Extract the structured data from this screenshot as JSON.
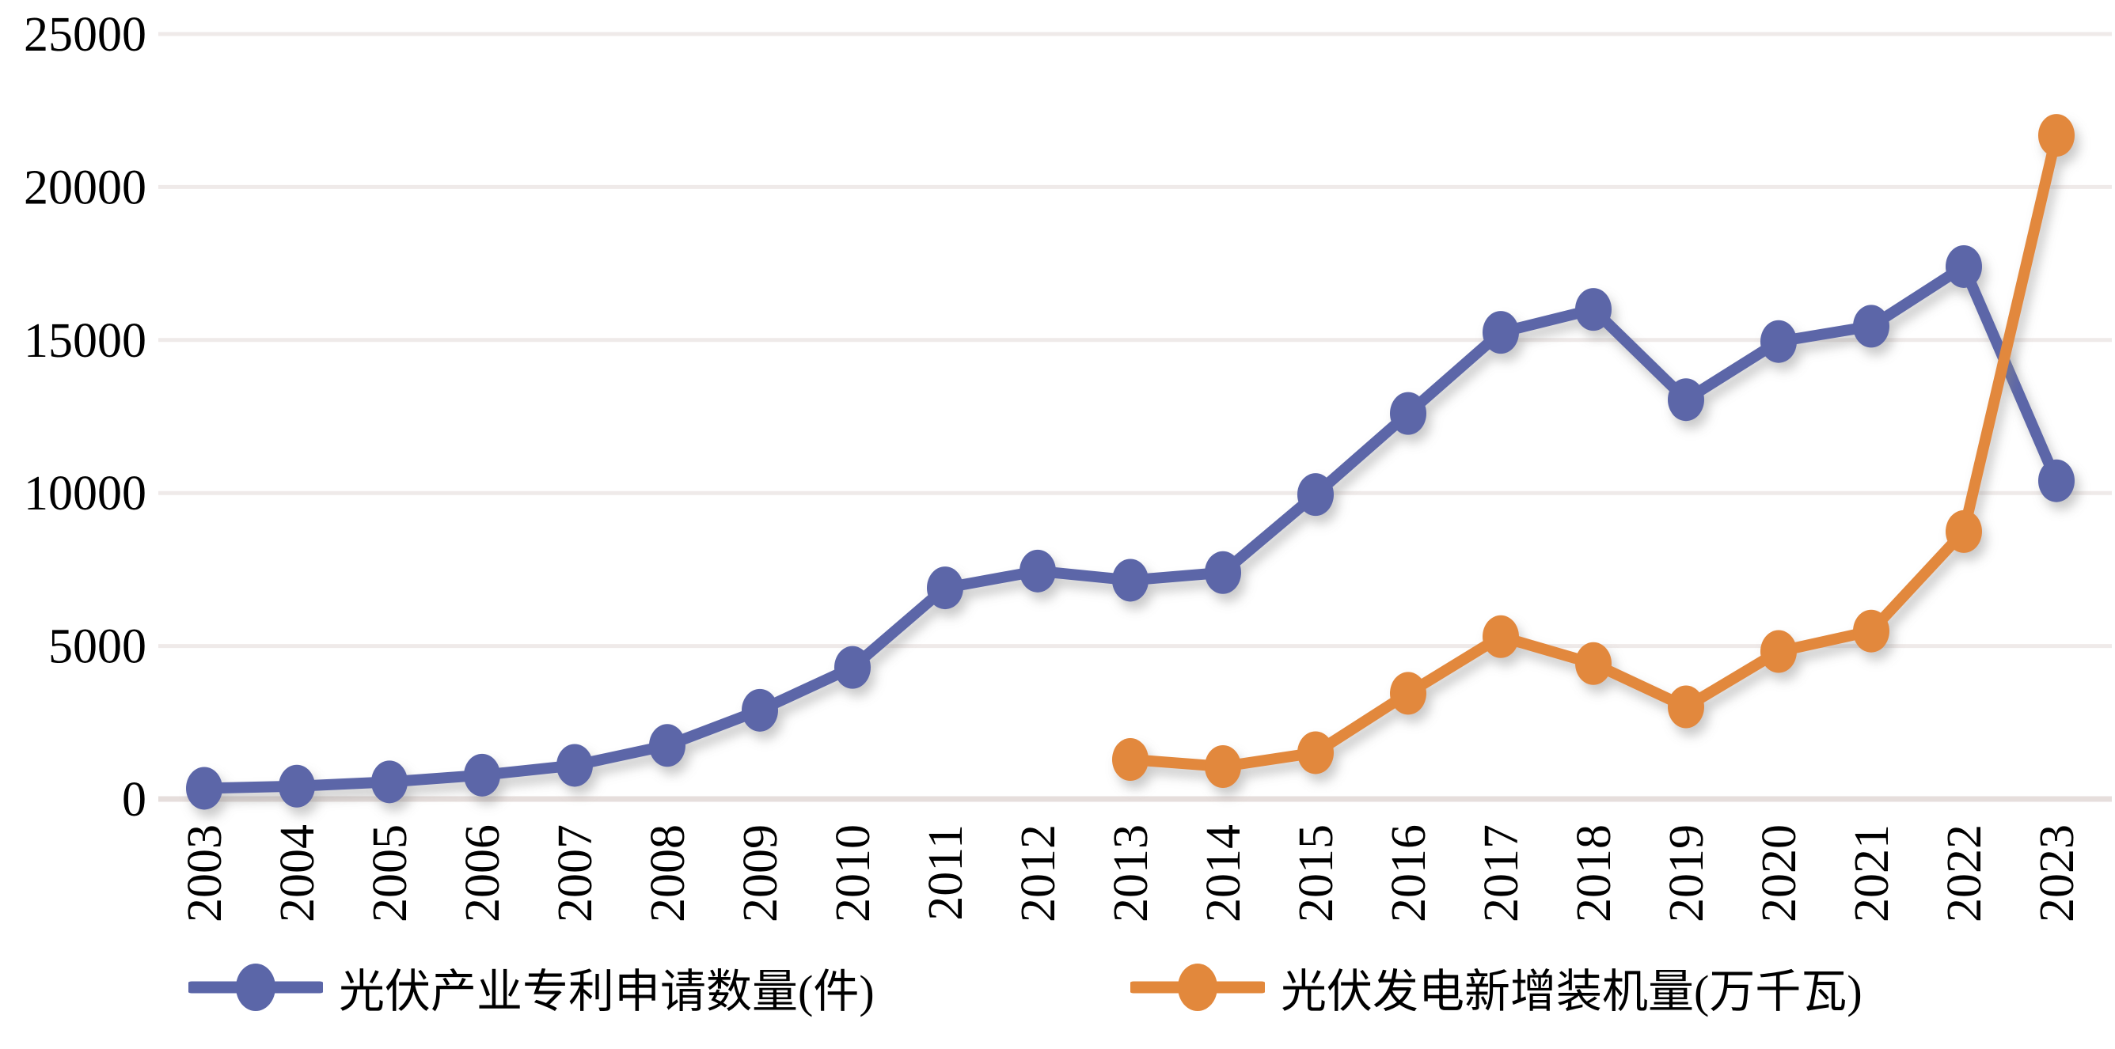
{
  "chart_data": {
    "type": "line",
    "title": "",
    "xlabel": "",
    "ylabel": "",
    "categories": [
      "2003",
      "2004",
      "2005",
      "2006",
      "2007",
      "2008",
      "2009",
      "2010",
      "2011",
      "2012",
      "2013",
      "2014",
      "2015",
      "2016",
      "2017",
      "2018",
      "2019",
      "2020",
      "2021",
      "2022",
      "2023"
    ],
    "series": [
      {
        "name": "光伏产业专利申请数量(件)",
        "color": "#5B66A8",
        "values": [
          350,
          420,
          560,
          780,
          1100,
          1750,
          2900,
          4300,
          6900,
          7450,
          7150,
          7400,
          9950,
          12600,
          15250,
          16000,
          13050,
          14950,
          15450,
          17400,
          10400
        ]
      },
      {
        "name": "光伏发电新增装机量(万千瓦)",
        "color": "#E2883C",
        "values": [
          null,
          null,
          null,
          null,
          null,
          null,
          null,
          null,
          null,
          null,
          1292,
          1060,
          1513,
          3454,
          5306,
          4426,
          3011,
          4820,
          5488,
          8741,
          21688
        ]
      }
    ],
    "ylim": [
      0,
      25000
    ],
    "yticks": [
      0,
      5000,
      10000,
      15000,
      20000,
      25000
    ],
    "grid": "horizontal",
    "legend_position": "bottom"
  },
  "colors": {
    "background": "#FFFFFF",
    "gridline": "#EFEAE9",
    "zeroline": "#E6DEDC",
    "axis_text": "#000000",
    "series_blue": "#5B66A8",
    "series_orange": "#E2883C"
  },
  "legend": {
    "items": [
      {
        "label": "光伏产业专利申请数量(件)"
      },
      {
        "label": "光伏发电新增装机量(万千瓦)"
      }
    ]
  }
}
